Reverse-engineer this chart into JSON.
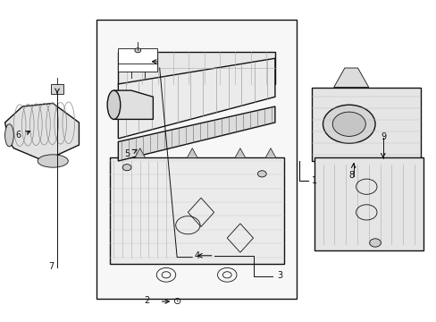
{
  "bg_color": "#ffffff",
  "line_color": "#111111",
  "gray_fill": "#e8e8e8",
  "light_fill": "#f0f0f0",
  "figsize": [
    4.89,
    3.6
  ],
  "dpi": 100
}
